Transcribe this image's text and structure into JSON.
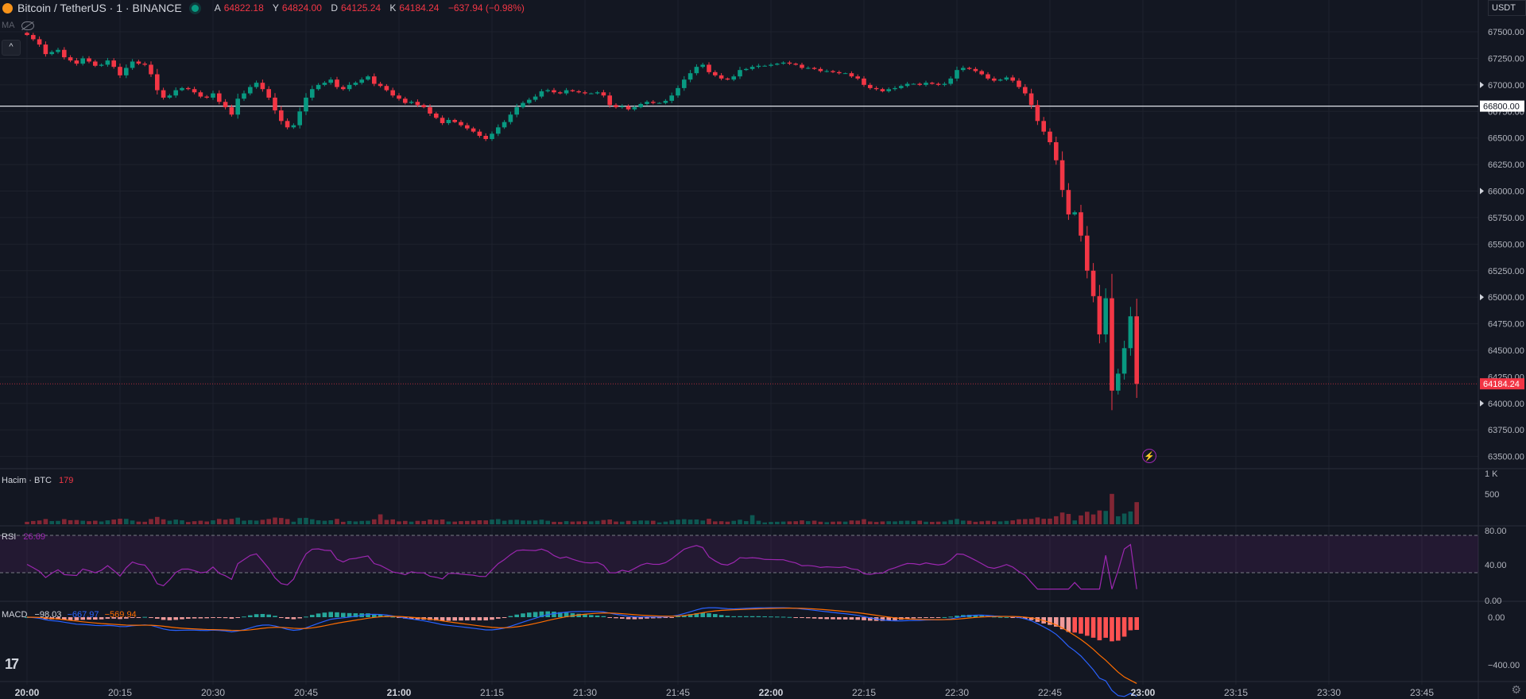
{
  "header": {
    "symbol": "Bitcoin / TetherUS · 1 · BINANCE",
    "open_label": "A",
    "open": "64822.18",
    "high_label": "Y",
    "high": "64824.00",
    "low_label": "D",
    "low": "64125.24",
    "close_label": "K",
    "close": "64184.24",
    "change": "−637.94 (−0.98%)"
  },
  "ma_label": "MA",
  "collapse_icon": "^",
  "currency": "USDT",
  "volume_label": "Hacim · BTC",
  "volume_value": "179",
  "rsi_label": "RSI",
  "rsi_value": "26.69",
  "macd_label": "MACD",
  "macd_values": [
    "−98.03",
    "−667.97",
    "−569.94"
  ],
  "tv_logo": "17",
  "gear_icon": "⚙",
  "bolt_icon": "⚡",
  "colors": {
    "up": "#089981",
    "down": "#f23645",
    "rsi": "#9c27b0",
    "macd": "#2962ff",
    "signal": "#ff6d00"
  },
  "price_axis": {
    "ticks": [
      "67500.00",
      "67250.00",
      "67000.00",
      "66750.00",
      "66500.00",
      "66250.00",
      "66000.00",
      "65750.00",
      "65500.00",
      "65250.00",
      "65000.00",
      "64750.00",
      "64500.00",
      "64250.00",
      "64000.00",
      "63750.00",
      "63500.00"
    ],
    "marked": [
      "67000.00",
      "66000.00",
      "65000.00",
      "64000.00"
    ],
    "hline_price": "66800.00",
    "last_price": "64184.24"
  },
  "volume_axis": [
    "1 K",
    "500"
  ],
  "rsi_axis": [
    "80.00",
    "40.00",
    "0.00"
  ],
  "macd_axis": [
    "0.00",
    "−400.00"
  ],
  "time_axis": [
    "20:00",
    "20:15",
    "20:30",
    "20:45",
    "21:00",
    "21:15",
    "21:30",
    "21:45",
    "22:00",
    "22:15",
    "22:30",
    "22:45",
    "23:00",
    "23:15",
    "23:30",
    "23:45"
  ],
  "time_axis_bold": [
    "20:00",
    "21:00",
    "22:00",
    "23:00"
  ],
  "chart_data": {
    "type": "candlestick",
    "x_start": "20:00",
    "interval_minutes": 1,
    "price_range": [
      63400,
      67650
    ],
    "close": [
      67470,
      67430,
      67380,
      67290,
      67310,
      67330,
      67260,
      67230,
      67200,
      67250,
      67220,
      67180,
      67190,
      67230,
      67170,
      67090,
      67160,
      67220,
      67200,
      67190,
      67100,
      66950,
      66880,
      66900,
      66950,
      66970,
      66960,
      66930,
      66890,
      66880,
      66920,
      66840,
      66790,
      66720,
      66870,
      66920,
      66980,
      67020,
      66960,
      66880,
      66760,
      66660,
      66600,
      66620,
      66750,
      66880,
      66960,
      67000,
      67020,
      67050,
      66980,
      66960,
      67000,
      67020,
      67050,
      67080,
      67010,
      66990,
      66950,
      66900,
      66870,
      66830,
      66840,
      66810,
      66790,
      66730,
      66690,
      66640,
      66670,
      66650,
      66620,
      66590,
      66560,
      66520,
      66490,
      66540,
      66600,
      66650,
      66720,
      66790,
      66830,
      66860,
      66890,
      66940,
      66950,
      66930,
      66920,
      66950,
      66940,
      66930,
      66920,
      66920,
      66930,
      66900,
      66810,
      66790,
      66800,
      66770,
      66790,
      66820,
      66840,
      66830,
      66830,
      66850,
      66900,
      66970,
      67050,
      67110,
      67170,
      67190,
      67120,
      67090,
      67060,
      67050,
      67080,
      67140,
      67150,
      67170,
      67180,
      67180,
      67190,
      67200,
      67210,
      67200,
      67190,
      67160,
      67160,
      67150,
      67130,
      67130,
      67120,
      67110,
      67110,
      67080,
      67060,
      67000,
      66970,
      66960,
      66940,
      66960,
      66970,
      66990,
      67010,
      67010,
      67000,
      67020,
      67010,
      67000,
      67010,
      67060,
      67140,
      67160,
      67150,
      67130,
      67100,
      67060,
      67040,
      67050,
      67070,
      67040,
      66980,
      66920,
      66810,
      66660,
      66560,
      66460,
      66290,
      66010,
      65780,
      65800,
      65580,
      65250,
      65010,
      64650,
      64990,
      64120,
      64280,
      64520,
      64820,
      64184
    ]
  }
}
